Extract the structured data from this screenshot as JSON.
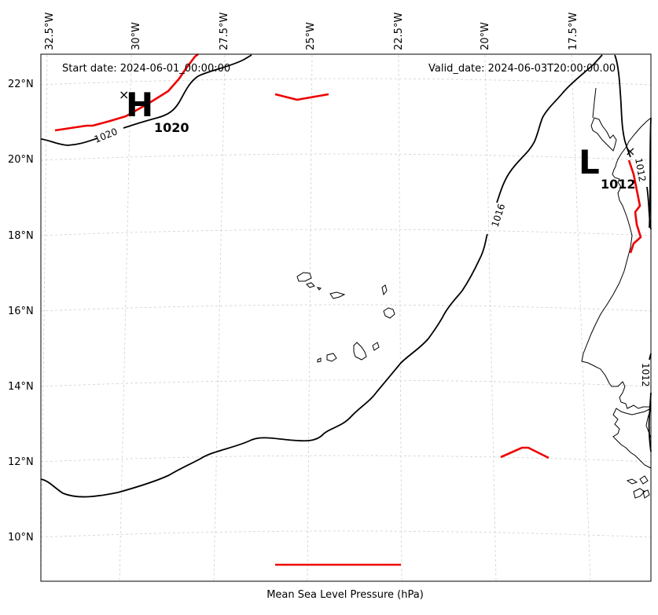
{
  "map": {
    "start_date": "Start date: 2024-06-01_00:00:00",
    "valid_date": "Valid_date: 2024-06-03T20:00:00.00",
    "caption": "Mean Sea Level Pressure (hPa)",
    "longitude_labels": [
      "32.5°W",
      "30°W",
      "27.5°W",
      "25°W",
      "22.5°W",
      "20°W",
      "17.5°W"
    ],
    "latitude_labels": [
      "22°N",
      "20°N",
      "18°N",
      "16°N",
      "14°N",
      "12°N",
      "10°N"
    ],
    "high": {
      "letter": "H",
      "value": "1020",
      "marker": "×"
    },
    "low": {
      "letter": "L",
      "value": "1012",
      "marker": "×"
    },
    "contour_labels": [
      "1020",
      "1016",
      "1012",
      "1012"
    ],
    "colors": {
      "isobar": "#000000",
      "front": "#ee0000",
      "grid": "#cfcfcf"
    }
  }
}
